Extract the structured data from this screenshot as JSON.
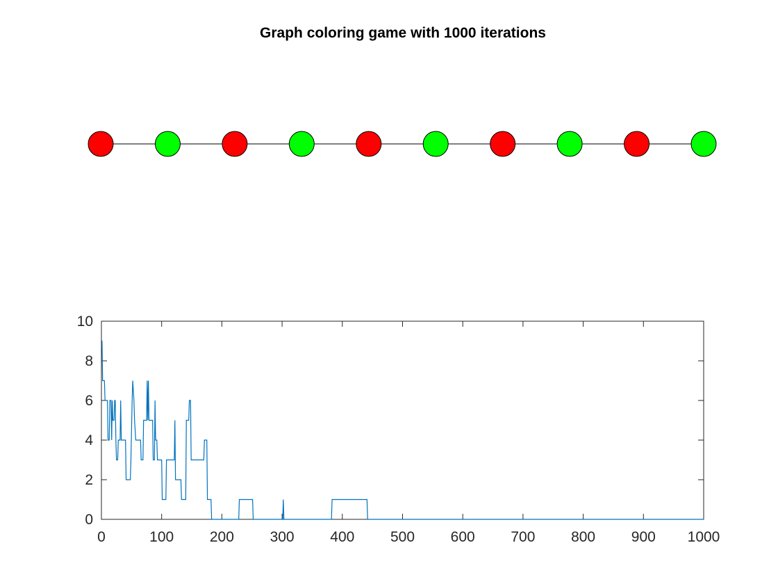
{
  "chart_data": [
    {
      "type": "graph",
      "title": "Graph coloring game with 1000 iterations",
      "nodes": [
        {
          "id": 1,
          "color": "#ff0000"
        },
        {
          "id": 2,
          "color": "#00ff00"
        },
        {
          "id": 3,
          "color": "#ff0000"
        },
        {
          "id": 4,
          "color": "#00ff00"
        },
        {
          "id": 5,
          "color": "#ff0000"
        },
        {
          "id": 6,
          "color": "#00ff00"
        },
        {
          "id": 7,
          "color": "#ff0000"
        },
        {
          "id": 8,
          "color": "#00ff00"
        },
        {
          "id": 9,
          "color": "#ff0000"
        },
        {
          "id": 10,
          "color": "#00ff00"
        }
      ],
      "edges": [
        [
          1,
          2
        ],
        [
          2,
          3
        ],
        [
          3,
          4
        ],
        [
          4,
          5
        ],
        [
          5,
          6
        ],
        [
          6,
          7
        ],
        [
          7,
          8
        ],
        [
          8,
          9
        ],
        [
          9,
          10
        ]
      ],
      "node_stroke": "#000000",
      "edge_color": "#000000"
    },
    {
      "type": "line",
      "xlabel": "",
      "ylabel": "",
      "xlim": [
        0,
        1000
      ],
      "ylim": [
        0,
        10
      ],
      "xticks": [
        0,
        100,
        200,
        300,
        400,
        500,
        600,
        700,
        800,
        900,
        1000
      ],
      "yticks": [
        0,
        2,
        4,
        6,
        8,
        10
      ],
      "grid": false,
      "series": [
        {
          "color": "#0072bd",
          "points": [
            [
              0,
              9
            ],
            [
              1,
              9
            ],
            [
              2,
              7
            ],
            [
              5,
              7
            ],
            [
              6,
              6
            ],
            [
              10,
              6
            ],
            [
              11,
              4
            ],
            [
              13,
              4
            ],
            [
              14,
              6
            ],
            [
              16,
              6
            ],
            [
              17,
              4
            ],
            [
              18,
              6
            ],
            [
              19,
              5
            ],
            [
              21,
              5
            ],
            [
              22,
              6
            ],
            [
              23,
              6
            ],
            [
              24,
              4
            ],
            [
              25,
              3
            ],
            [
              27,
              3
            ],
            [
              28,
              4
            ],
            [
              31,
              4
            ],
            [
              32,
              6
            ],
            [
              33,
              4
            ],
            [
              40,
              4
            ],
            [
              41,
              2
            ],
            [
              48,
              2
            ],
            [
              49,
              3
            ],
            [
              51,
              6
            ],
            [
              52,
              7
            ],
            [
              54,
              6
            ],
            [
              55,
              5
            ],
            [
              57,
              4
            ],
            [
              65,
              4
            ],
            [
              66,
              3
            ],
            [
              69,
              3
            ],
            [
              70,
              5
            ],
            [
              75,
              5
            ],
            [
              76,
              7
            ],
            [
              77,
              5
            ],
            [
              78,
              7
            ],
            [
              79,
              5
            ],
            [
              85,
              5
            ],
            [
              86,
              3
            ],
            [
              88,
              3
            ],
            [
              89,
              6
            ],
            [
              90,
              4
            ],
            [
              92,
              4
            ],
            [
              93,
              3
            ],
            [
              100,
              3
            ],
            [
              101,
              1
            ],
            [
              107,
              1
            ],
            [
              108,
              3
            ],
            [
              121,
              3
            ],
            [
              122,
              5
            ],
            [
              123,
              2
            ],
            [
              132,
              2
            ],
            [
              133,
              1
            ],
            [
              140,
              1
            ],
            [
              141,
              5
            ],
            [
              145,
              5
            ],
            [
              146,
              6
            ],
            [
              148,
              6
            ],
            [
              149,
              3
            ],
            [
              170,
              3
            ],
            [
              171,
              4
            ],
            [
              175,
              4
            ],
            [
              176,
              1
            ],
            [
              182,
              1
            ],
            [
              183,
              0
            ],
            [
              228,
              0
            ],
            [
              229,
              1
            ],
            [
              251,
              1
            ],
            [
              252,
              0
            ],
            [
              301,
              0
            ],
            [
              302,
              1
            ],
            [
              303,
              0
            ],
            [
              382,
              0
            ],
            [
              383,
              1
            ],
            [
              441,
              1
            ],
            [
              442,
              0
            ],
            [
              1000,
              0
            ]
          ]
        }
      ]
    }
  ]
}
